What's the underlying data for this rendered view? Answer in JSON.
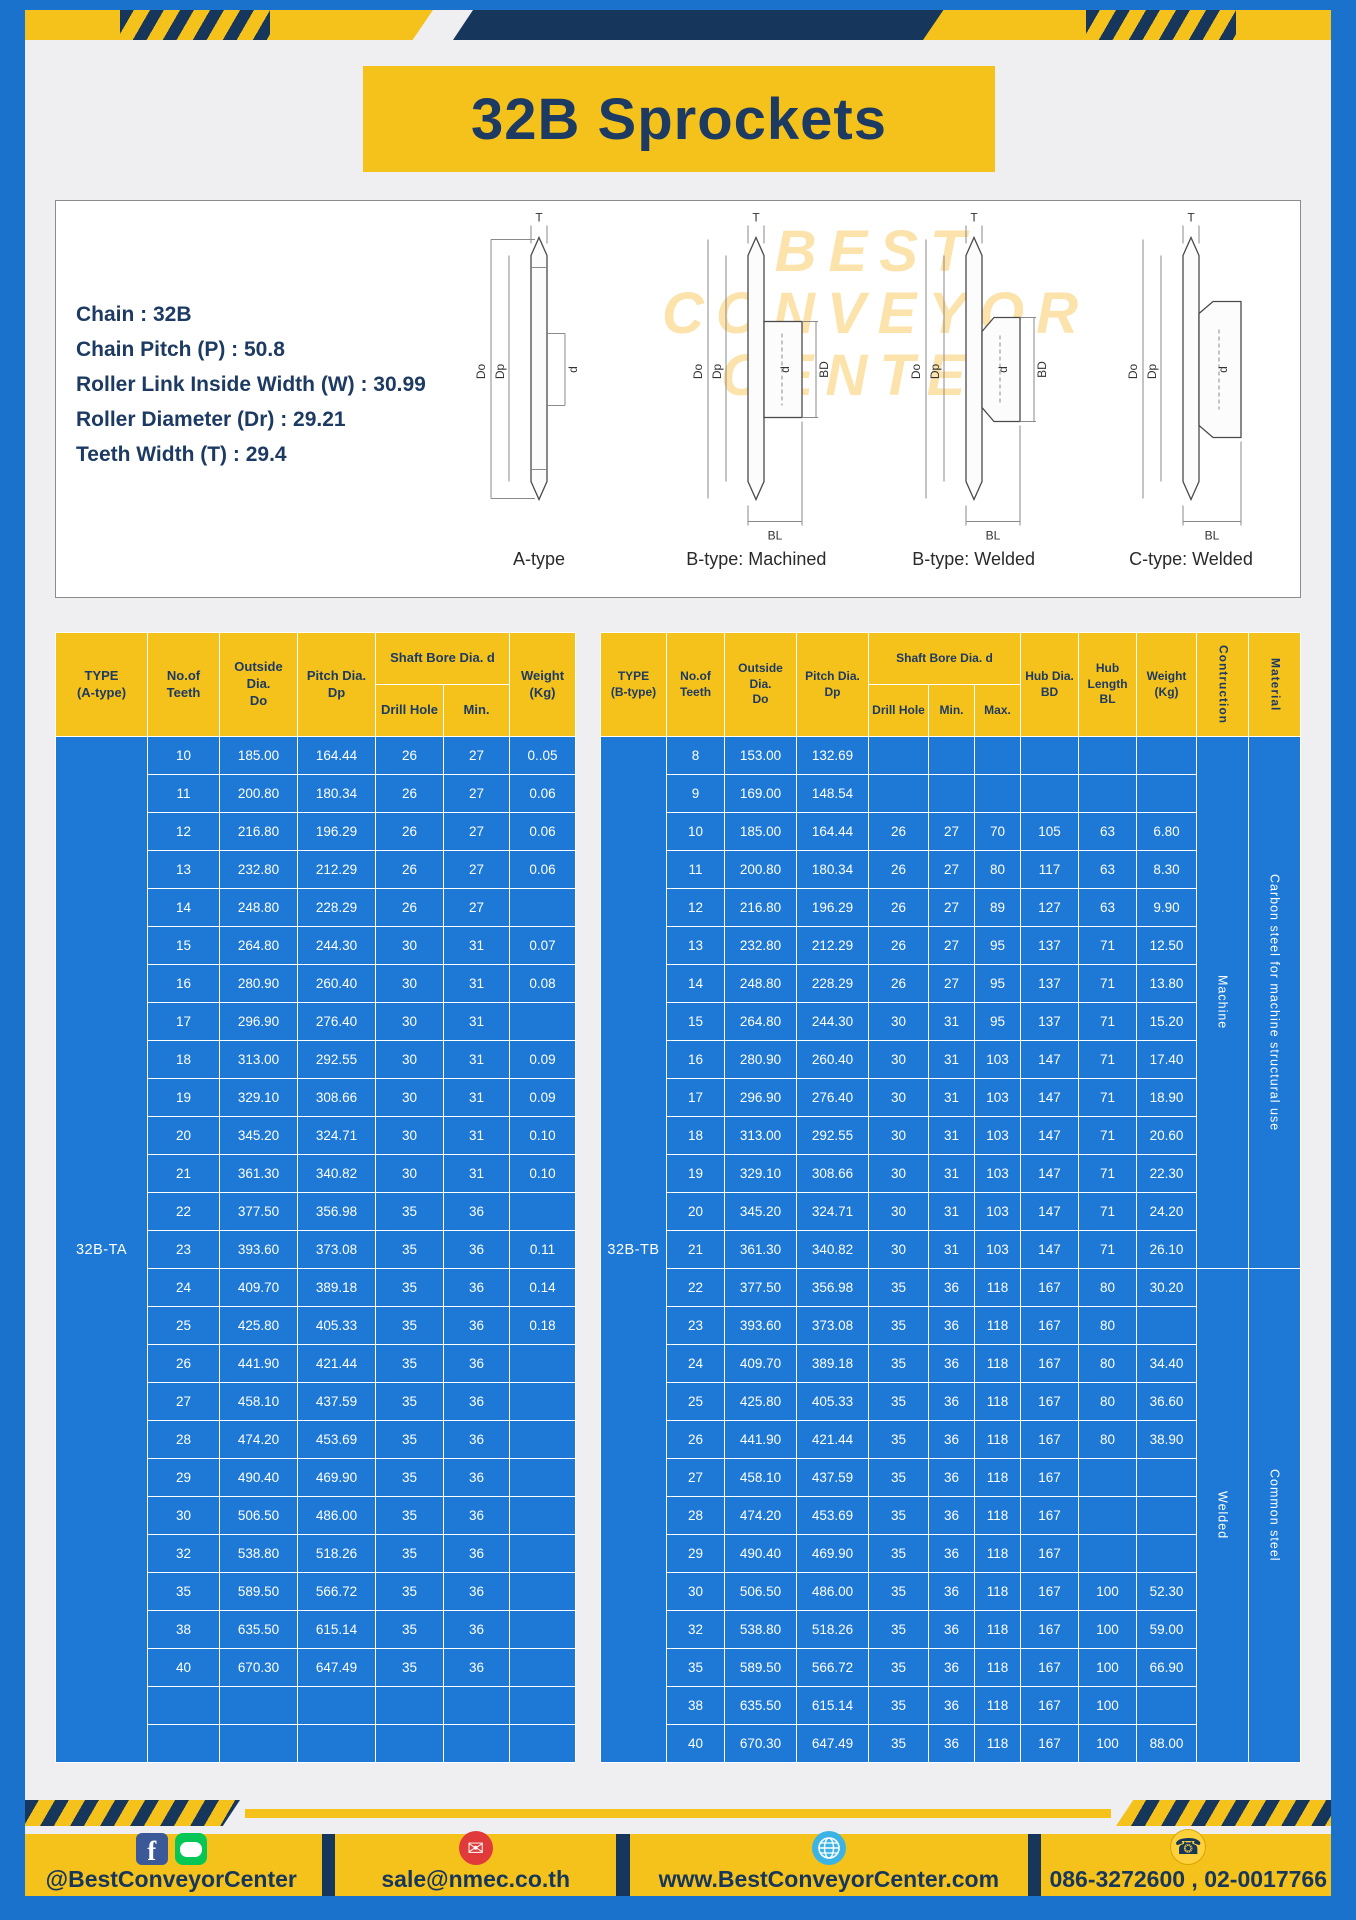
{
  "title": "32B Sprockets",
  "colors": {
    "yellow": "#f5c21c",
    "navy": "#1d3a63",
    "page_blue": "#1a72cc",
    "cell_blue": "#1e79d6"
  },
  "specs": {
    "lines": [
      "Chain  :  32B",
      "Chain Pitch (P)  :  50.8",
      "Roller Link Inside Width (W)  :  30.99",
      "Roller Diameter (Dr)  :  29.21",
      "Teeth Width (T)  :  29.4"
    ]
  },
  "watermark": {
    "line1": "BEST",
    "line2": "CONVEYOR",
    "line3": "CENTER"
  },
  "diagrams": {
    "captions": [
      "A-type",
      "B-type: Machined",
      "B-type: Welded",
      "C-type: Welded"
    ],
    "dims": {
      "t": "T",
      "outside": "Do",
      "pitch": "Dp",
      "bore": "d",
      "hub_dia": "BD",
      "hub_len": "BL"
    }
  },
  "table_a": {
    "type_label": "32B-TA",
    "header": {
      "type": "TYPE\n(A-type)",
      "teeth": "No.of\nTeeth",
      "outside": "Outside\nDia.\nDo",
      "pitch": "Pitch Dia.\nDp",
      "shaft_group": "Shaft Bore Dia. d",
      "drill": "Drill Hole",
      "min": "Min.",
      "weight": "Weight\n(Kg)"
    },
    "rows": [
      [
        "10",
        "185.00",
        "164.44",
        "26",
        "27",
        "0..05"
      ],
      [
        "11",
        "200.80",
        "180.34",
        "26",
        "27",
        "0.06"
      ],
      [
        "12",
        "216.80",
        "196.29",
        "26",
        "27",
        "0.06"
      ],
      [
        "13",
        "232.80",
        "212.29",
        "26",
        "27",
        "0.06"
      ],
      [
        "14",
        "248.80",
        "228.29",
        "26",
        "27",
        ""
      ],
      [
        "15",
        "264.80",
        "244.30",
        "30",
        "31",
        "0.07"
      ],
      [
        "16",
        "280.90",
        "260.40",
        "30",
        "31",
        "0.08"
      ],
      [
        "17",
        "296.90",
        "276.40",
        "30",
        "31",
        ""
      ],
      [
        "18",
        "313.00",
        "292.55",
        "30",
        "31",
        "0.09"
      ],
      [
        "19",
        "329.10",
        "308.66",
        "30",
        "31",
        "0.09"
      ],
      [
        "20",
        "345.20",
        "324.71",
        "30",
        "31",
        "0.10"
      ],
      [
        "21",
        "361.30",
        "340.82",
        "30",
        "31",
        "0.10"
      ],
      [
        "22",
        "377.50",
        "356.98",
        "35",
        "36",
        ""
      ],
      [
        "23",
        "393.60",
        "373.08",
        "35",
        "36",
        "0.11"
      ],
      [
        "24",
        "409.70",
        "389.18",
        "35",
        "36",
        "0.14"
      ],
      [
        "25",
        "425.80",
        "405.33",
        "35",
        "36",
        "0.18"
      ],
      [
        "26",
        "441.90",
        "421.44",
        "35",
        "36",
        ""
      ],
      [
        "27",
        "458.10",
        "437.59",
        "35",
        "36",
        ""
      ],
      [
        "28",
        "474.20",
        "453.69",
        "35",
        "36",
        ""
      ],
      [
        "29",
        "490.40",
        "469.90",
        "35",
        "36",
        ""
      ],
      [
        "30",
        "506.50",
        "486.00",
        "35",
        "36",
        ""
      ],
      [
        "32",
        "538.80",
        "518.26",
        "35",
        "36",
        ""
      ],
      [
        "35",
        "589.50",
        "566.72",
        "35",
        "36",
        ""
      ],
      [
        "38",
        "635.50",
        "615.14",
        "35",
        "36",
        ""
      ],
      [
        "40",
        "670.30",
        "647.49",
        "35",
        "36",
        ""
      ],
      [
        "",
        "",
        "",
        "",
        "",
        ""
      ],
      [
        "",
        "",
        "",
        "",
        "",
        ""
      ]
    ]
  },
  "table_b": {
    "type_label": "32B-TB",
    "header": {
      "type": "TYPE\n(B-type)",
      "teeth": "No.of\nTeeth",
      "outside": "Outside\nDia.\nDo",
      "pitch": "Pitch Dia.\nDp",
      "shaft_group": "Shaft Bore Dia. d",
      "drill": "Drill Hole",
      "min": "Min.",
      "max": "Max.",
      "hub_dia": "Hub Dia.\nBD",
      "hub_len": "Hub\nLength\nBL",
      "weight": "Weight\n(Kg)",
      "construction": "Contruction",
      "material": "Material"
    },
    "rows": [
      [
        "8",
        "153.00",
        "132.69",
        "",
        "",
        "",
        "",
        "",
        ""
      ],
      [
        "9",
        "169.00",
        "148.54",
        "",
        "",
        "",
        "",
        "",
        ""
      ],
      [
        "10",
        "185.00",
        "164.44",
        "26",
        "27",
        "70",
        "105",
        "63",
        "6.80"
      ],
      [
        "11",
        "200.80",
        "180.34",
        "26",
        "27",
        "80",
        "117",
        "63",
        "8.30"
      ],
      [
        "12",
        "216.80",
        "196.29",
        "26",
        "27",
        "89",
        "127",
        "63",
        "9.90"
      ],
      [
        "13",
        "232.80",
        "212.29",
        "26",
        "27",
        "95",
        "137",
        "71",
        "12.50"
      ],
      [
        "14",
        "248.80",
        "228.29",
        "26",
        "27",
        "95",
        "137",
        "71",
        "13.80"
      ],
      [
        "15",
        "264.80",
        "244.30",
        "30",
        "31",
        "95",
        "137",
        "71",
        "15.20"
      ],
      [
        "16",
        "280.90",
        "260.40",
        "30",
        "31",
        "103",
        "147",
        "71",
        "17.40"
      ],
      [
        "17",
        "296.90",
        "276.40",
        "30",
        "31",
        "103",
        "147",
        "71",
        "18.90"
      ],
      [
        "18",
        "313.00",
        "292.55",
        "30",
        "31",
        "103",
        "147",
        "71",
        "20.60"
      ],
      [
        "19",
        "329.10",
        "308.66",
        "30",
        "31",
        "103",
        "147",
        "71",
        "22.30"
      ],
      [
        "20",
        "345.20",
        "324.71",
        "30",
        "31",
        "103",
        "147",
        "71",
        "24.20"
      ],
      [
        "21",
        "361.30",
        "340.82",
        "30",
        "31",
        "103",
        "147",
        "71",
        "26.10"
      ],
      [
        "22",
        "377.50",
        "356.98",
        "35",
        "36",
        "118",
        "167",
        "80",
        "30.20"
      ],
      [
        "23",
        "393.60",
        "373.08",
        "35",
        "36",
        "118",
        "167",
        "80",
        ""
      ],
      [
        "24",
        "409.70",
        "389.18",
        "35",
        "36",
        "118",
        "167",
        "80",
        "34.40"
      ],
      [
        "25",
        "425.80",
        "405.33",
        "35",
        "36",
        "118",
        "167",
        "80",
        "36.60"
      ],
      [
        "26",
        "441.90",
        "421.44",
        "35",
        "36",
        "118",
        "167",
        "80",
        "38.90"
      ],
      [
        "27",
        "458.10",
        "437.59",
        "35",
        "36",
        "118",
        "167",
        "",
        ""
      ],
      [
        "28",
        "474.20",
        "453.69",
        "35",
        "36",
        "118",
        "167",
        "",
        ""
      ],
      [
        "29",
        "490.40",
        "469.90",
        "35",
        "36",
        "118",
        "167",
        "",
        ""
      ],
      [
        "30",
        "506.50",
        "486.00",
        "35",
        "36",
        "118",
        "167",
        "100",
        "52.30"
      ],
      [
        "32",
        "538.80",
        "518.26",
        "35",
        "36",
        "118",
        "167",
        "100",
        "59.00"
      ],
      [
        "35",
        "589.50",
        "566.72",
        "35",
        "36",
        "118",
        "167",
        "100",
        "66.90"
      ],
      [
        "38",
        "635.50",
        "615.14",
        "35",
        "36",
        "118",
        "167",
        "100",
        ""
      ],
      [
        "40",
        "670.30",
        "647.49",
        "35",
        "36",
        "118",
        "167",
        "100",
        "88.00"
      ]
    ],
    "construction": [
      {
        "label": "Machine",
        "span": 14
      },
      {
        "label": "Welded",
        "span": 13
      }
    ],
    "material": [
      {
        "label": "Carbon steel for machine structural use",
        "span": 14
      },
      {
        "label": "Common steel",
        "span": 13
      }
    ]
  },
  "footer": {
    "social": "@BestConveyorCenter",
    "email": "sale@nmec.co.th",
    "website": "www.BestConveyorCenter.com",
    "phone": "086-3272600 , 02-0017766",
    "icons": {
      "facebook": "f",
      "mail": "✉",
      "phone": "☎"
    }
  }
}
